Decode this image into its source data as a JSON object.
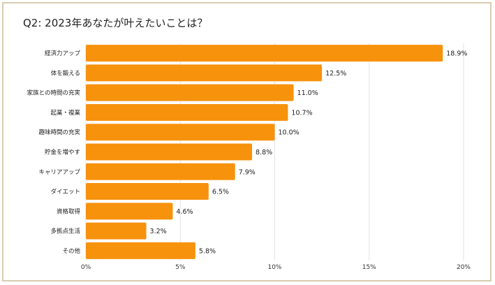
{
  "chart_data": {
    "type": "bar",
    "orientation": "horizontal",
    "title": "Q2: 2023年あなたが叶えたいことは？",
    "categories": [
      "経済力アップ",
      "体を鍛える",
      "家族との時間の充実",
      "起業・複業",
      "趣味時間の充実",
      "貯金を増やす",
      "キャリアアップ",
      "ダイエット",
      "資格取得",
      "多拠点生活",
      "その他"
    ],
    "values": [
      18.9,
      12.5,
      11.0,
      10.7,
      10.0,
      8.8,
      7.9,
      6.5,
      4.6,
      3.2,
      5.8
    ],
    "value_labels": [
      "18.9%",
      "12.5%",
      "11.0%",
      "10.7%",
      "10.0%",
      "8.8%",
      "7.9%",
      "6.5%",
      "4.6%",
      "3.2%",
      "5.8%"
    ],
    "xlim": [
      0,
      20
    ],
    "xticks": [
      0,
      5,
      10,
      15,
      20
    ],
    "xtick_labels": [
      "0%",
      "5%",
      "10%",
      "15%",
      "20%"
    ],
    "xlabel": "",
    "ylabel": "",
    "grid": true,
    "bar_color": "#f7920d",
    "grid_color": "#e3e3e3",
    "legend": "none"
  }
}
